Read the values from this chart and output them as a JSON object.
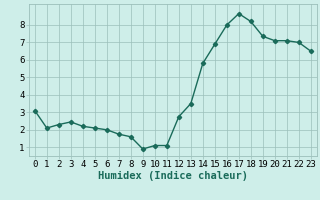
{
  "x": [
    0,
    1,
    2,
    3,
    4,
    5,
    6,
    7,
    8,
    9,
    10,
    11,
    12,
    13,
    14,
    15,
    16,
    17,
    18,
    19,
    20,
    21,
    22,
    23
  ],
  "y": [
    3.1,
    2.1,
    2.3,
    2.45,
    2.2,
    2.1,
    2.0,
    1.75,
    1.6,
    0.9,
    1.1,
    1.1,
    2.75,
    3.5,
    5.8,
    6.9,
    8.0,
    8.65,
    8.2,
    7.35,
    7.1,
    7.1,
    7.0,
    6.5
  ],
  "line_color": "#1a6b5a",
  "marker": "D",
  "marker_size": 2.2,
  "bg_color": "#ceeee9",
  "grid_color": "#9bbfba",
  "xlabel": "Humidex (Indice chaleur)",
  "xlim": [
    -0.5,
    23.5
  ],
  "ylim": [
    0.5,
    9.2
  ],
  "yticks": [
    1,
    2,
    3,
    4,
    5,
    6,
    7,
    8
  ],
  "xticks": [
    0,
    1,
    2,
    3,
    4,
    5,
    6,
    7,
    8,
    9,
    10,
    11,
    12,
    13,
    14,
    15,
    16,
    17,
    18,
    19,
    20,
    21,
    22,
    23
  ],
  "xlabel_fontsize": 7.5,
  "tick_fontsize": 6.5,
  "line_width": 1.0
}
